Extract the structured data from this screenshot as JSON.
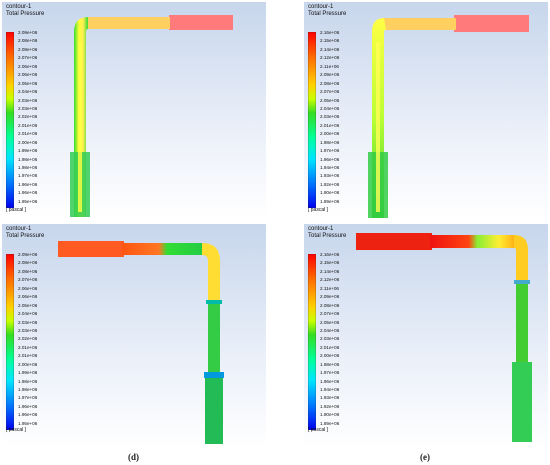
{
  "panels": [
    {
      "id": "top-left",
      "contour": "contour-1",
      "quantity": "Total Pressure",
      "unit": "[ pascal ]",
      "scale": [
        "2.09e+06",
        "2.08e+06",
        "2.08e+06",
        "2.07e+06",
        "2.06e+06",
        "2.06e+06",
        "2.05e+06",
        "2.04e+06",
        "2.03e+06",
        "2.03e+06",
        "2.02e+06",
        "2.01e+06",
        "2.01e+06",
        "2.00e+06",
        "1.99e+06",
        "1.98e+06",
        "1.98e+06",
        "1.97e+06",
        "1.96e+06",
        "1.96e+06",
        "1.95e+06"
      ]
    },
    {
      "id": "top-right",
      "contour": "contour-1",
      "quantity": "Total Pressure",
      "unit": "[ pascal ]",
      "scale": [
        "2.16e+06",
        "2.15e+06",
        "2.14e+06",
        "2.12e+06",
        "2.11e+06",
        "2.09e+06",
        "2.08e+06",
        "2.07e+06",
        "2.05e+06",
        "2.04e+06",
        "2.03e+06",
        "2.01e+06",
        "2.00e+06",
        "1.98e+06",
        "1.97e+06",
        "1.96e+06",
        "1.94e+06",
        "1.93e+06",
        "1.92e+06",
        "1.90e+06",
        "1.89e+06"
      ]
    },
    {
      "id": "d",
      "contour": "contour-1",
      "quantity": "Total Pressure",
      "unit": "[ pascal ]",
      "caption": "(d)",
      "scale": [
        "2.09e+06",
        "2.08e+06",
        "2.08e+06",
        "2.07e+06",
        "2.06e+06",
        "2.06e+06",
        "2.05e+06",
        "2.04e+06",
        "2.03e+06",
        "2.03e+06",
        "2.02e+06",
        "2.01e+06",
        "2.01e+06",
        "2.00e+06",
        "1.99e+06",
        "1.98e+06",
        "1.98e+06",
        "1.97e+06",
        "1.96e+06",
        "1.96e+06",
        "1.95e+06"
      ]
    },
    {
      "id": "e",
      "contour": "contour-1",
      "quantity": "Total Pressure",
      "unit": "[ pascal ]",
      "caption": "(e)",
      "scale": [
        "2.16e+06",
        "2.15e+06",
        "2.14e+06",
        "2.12e+06",
        "2.11e+06",
        "2.09e+06",
        "2.08e+06",
        "2.07e+06",
        "2.05e+06",
        "2.04e+06",
        "2.03e+06",
        "2.01e+06",
        "2.00e+06",
        "1.98e+06",
        "1.97e+06",
        "1.96e+06",
        "1.94e+06",
        "1.93e+06",
        "1.92e+06",
        "1.90e+06",
        "1.89e+06"
      ]
    }
  ],
  "colormap": [
    "#ff0000",
    "#ff4400",
    "#ff8800",
    "#ffcc00",
    "#ffff00",
    "#aaff00",
    "#44ff00",
    "#00ff44",
    "#00ffaa",
    "#00ffff",
    "#00aaff",
    "#0044ff",
    "#0000ff"
  ]
}
